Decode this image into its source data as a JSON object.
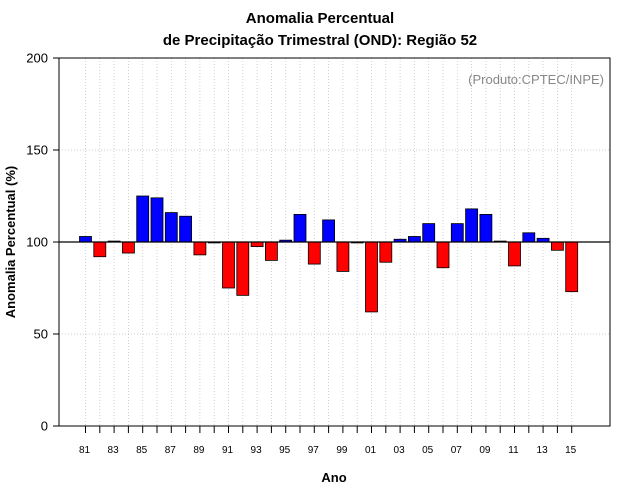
{
  "chart_data": {
    "type": "bar",
    "title": "Anomalia Percentual",
    "subtitle": "de Precipitação Trimestral (OND): Região 52",
    "xlabel": "Ano",
    "ylabel": "Anomalia Percentual (%)",
    "ylim": [
      0,
      200
    ],
    "yticks": [
      0,
      50,
      100,
      150,
      200
    ],
    "baseline": 100,
    "grid": true,
    "annotation": "(Produto:CPTEC/INPE)",
    "x_tick_labels": [
      "81",
      "83",
      "85",
      "87",
      "89",
      "91",
      "93",
      "95",
      "97",
      "99",
      "01",
      "03",
      "05",
      "07",
      "09",
      "11",
      "13",
      "15"
    ],
    "categories": [
      "1981",
      "1982",
      "1983",
      "1984",
      "1985",
      "1986",
      "1987",
      "1988",
      "1989",
      "1990",
      "1991",
      "1992",
      "1993",
      "1994",
      "1995",
      "1996",
      "1997",
      "1998",
      "1999",
      "2000",
      "2001",
      "2002",
      "2003",
      "2004",
      "2005",
      "2006",
      "2007",
      "2008",
      "2009",
      "2010",
      "2011",
      "2012",
      "2013",
      "2014",
      "2015"
    ],
    "values": [
      103,
      92,
      100.5,
      94,
      125,
      124,
      116,
      114,
      93,
      99.5,
      75,
      71,
      97.5,
      90,
      101,
      115,
      88,
      112,
      84,
      99.5,
      62,
      89,
      101.5,
      103,
      110,
      86,
      110,
      118,
      115,
      100.5,
      87,
      105,
      102,
      95.5,
      73
    ],
    "colors": {
      "above": "#0000ff",
      "below": "#ff0000",
      "baseline": "#000000",
      "grid": "#c0c0c0"
    }
  }
}
